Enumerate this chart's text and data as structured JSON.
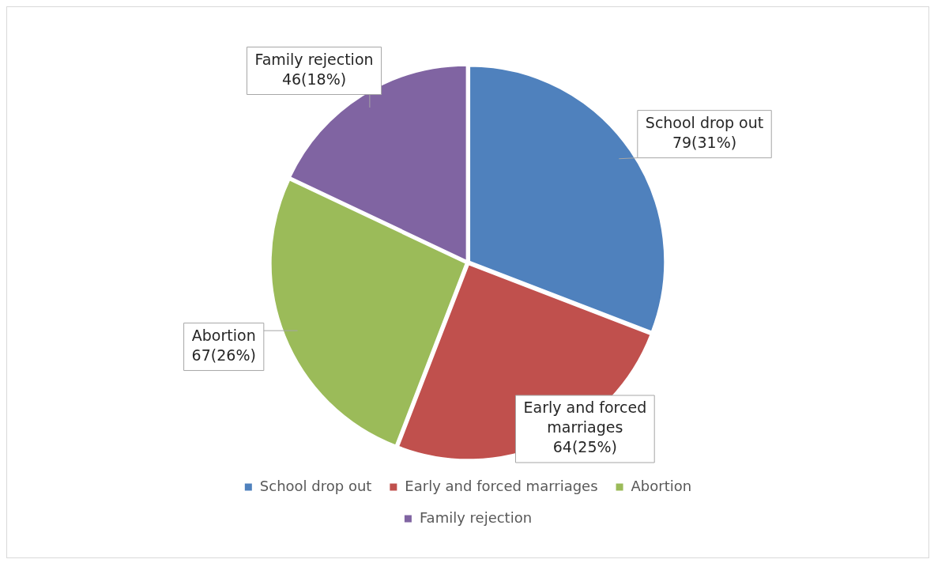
{
  "chart_data": {
    "type": "pie",
    "categories": [
      "School drop out",
      "Early and forced marriages",
      "Abortion",
      "Family rejection"
    ],
    "values": [
      79,
      64,
      67,
      46
    ],
    "colors": [
      "#4f81bd",
      "#c0504d",
      "#9bbb59",
      "#8064a2"
    ],
    "value_labels": [
      "79(31%)",
      "64(25%)",
      "67(26%)",
      "46(18%)"
    ],
    "legend": "bottom"
  }
}
